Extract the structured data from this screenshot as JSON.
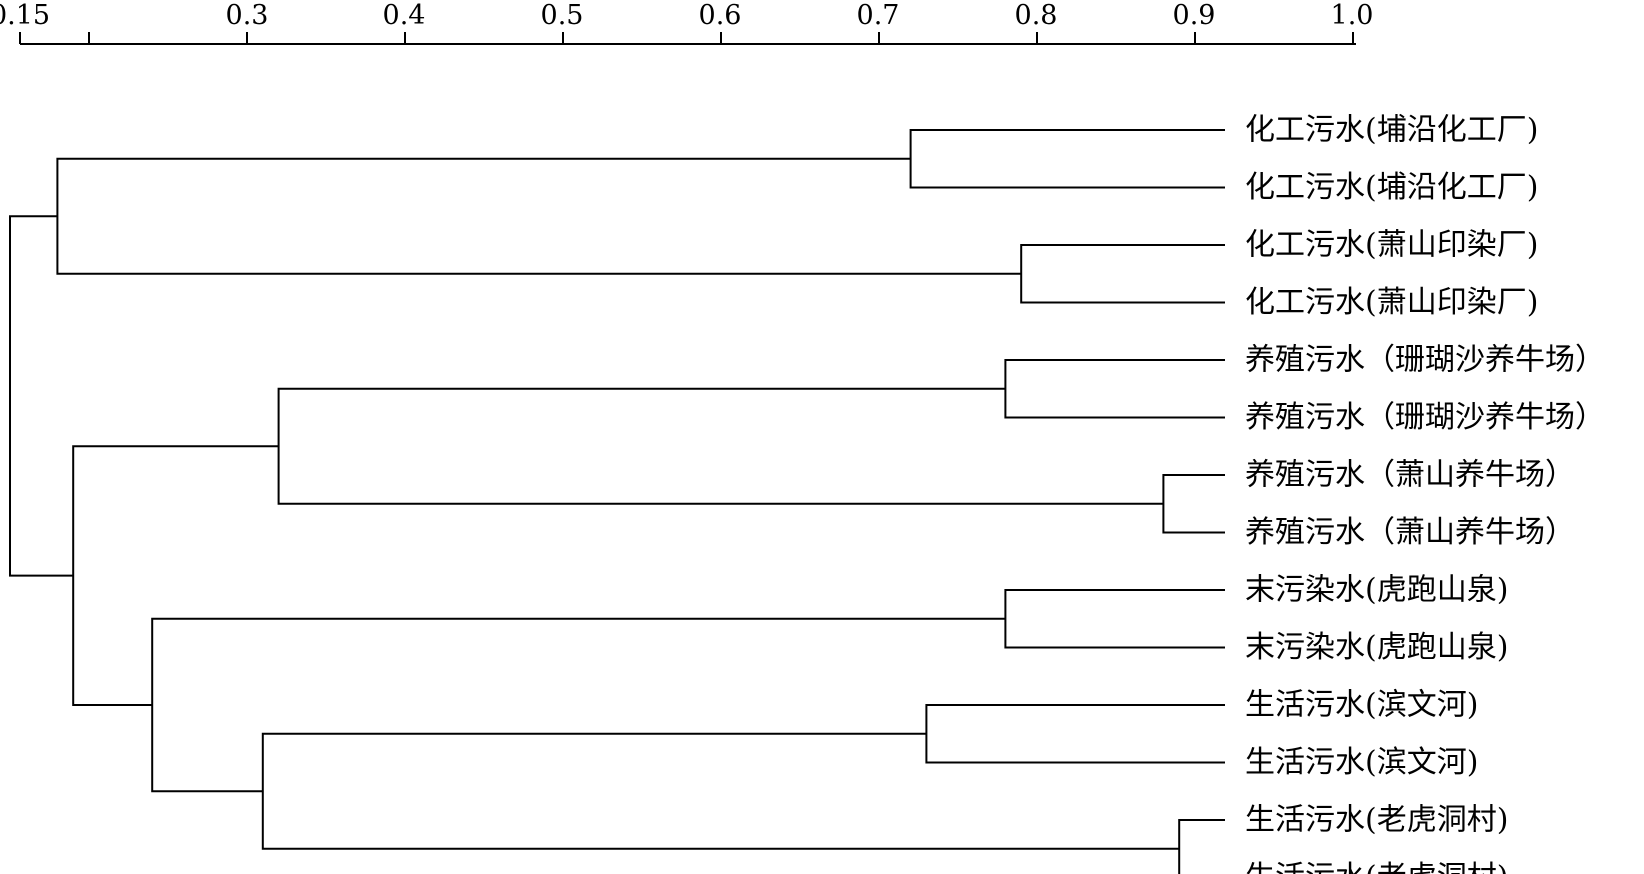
{
  "axis": {
    "ticks": [
      "0.15",
      "0.3",
      "0.4",
      "0.5",
      "0.6",
      "0.7",
      "0.8",
      "0.9",
      "1.0"
    ]
  },
  "chart_data": {
    "type": "dendrogram",
    "scale_min": 0.15,
    "scale_max": 1.0,
    "scale_break": {
      "printed_tick": "0.15",
      "second_tick_value": 0.2
    },
    "tick_values": [
      0.2,
      0.3,
      0.4,
      0.5,
      0.6,
      0.7,
      0.8,
      0.9,
      1.0
    ],
    "leaves": [
      "化工污水(埔沿化工厂)",
      "化工污水(埔沿化工厂)",
      "化工污水(萧山印染厂)",
      "化工污水(萧山印染厂)",
      "养殖污水（珊瑚沙养牛场）",
      "养殖污水（珊瑚沙养牛场）",
      "养殖污水（萧山养牛场）",
      "养殖污水（萧山养牛场）",
      "末污染水(虎跑山泉)",
      "末污染水(虎跑山泉)",
      "生活污水(滨文河)",
      "生活污水(滨文河)",
      "生活污水(老虎洞村)",
      "生活污水(老虎洞村)"
    ],
    "merges": [
      {
        "id": "A",
        "children": [
          "L0",
          "L1"
        ],
        "similarity": 0.72
      },
      {
        "id": "B",
        "children": [
          "L2",
          "L3"
        ],
        "similarity": 0.79
      },
      {
        "id": "C",
        "children": [
          "L4",
          "L5"
        ],
        "similarity": 0.78
      },
      {
        "id": "D",
        "children": [
          "L6",
          "L7"
        ],
        "similarity": 0.88
      },
      {
        "id": "E",
        "children": [
          "L8",
          "L9"
        ],
        "similarity": 0.78
      },
      {
        "id": "F",
        "children": [
          "L10",
          "L11"
        ],
        "similarity": 0.73
      },
      {
        "id": "G",
        "children": [
          "L12",
          "L13"
        ],
        "similarity": 0.89
      },
      {
        "id": "H",
        "children": [
          "A",
          "B"
        ],
        "similarity": 0.18
      },
      {
        "id": "I",
        "children": [
          "C",
          "D"
        ],
        "similarity": 0.32
      },
      {
        "id": "J",
        "children": [
          "F",
          "G"
        ],
        "similarity": 0.31
      },
      {
        "id": "K",
        "children": [
          "E",
          "J"
        ],
        "similarity": 0.24
      },
      {
        "id": "M",
        "children": [
          "I",
          "K"
        ],
        "similarity": 0.19
      },
      {
        "id": "N",
        "children": [
          "H",
          "M"
        ],
        "similarity": 0.15
      }
    ]
  }
}
